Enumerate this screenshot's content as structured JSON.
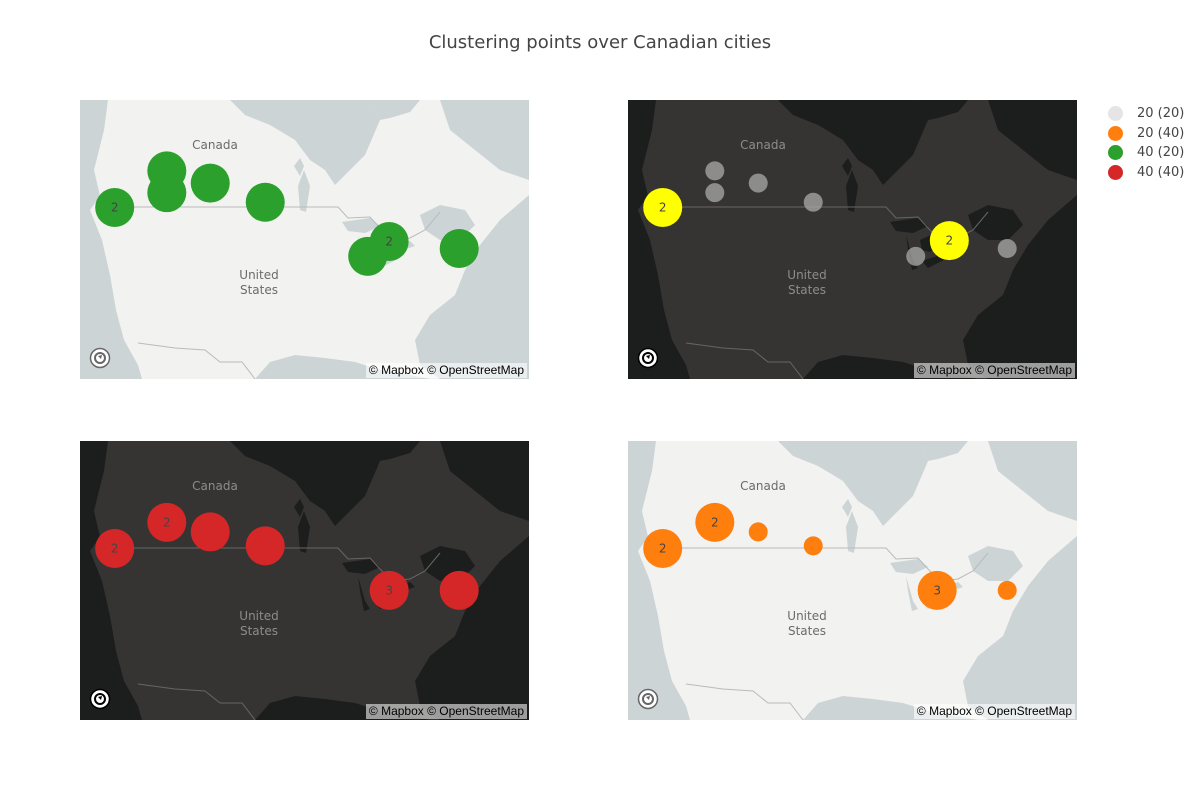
{
  "title": "Clustering points over Canadian cities",
  "attribution": "© Mapbox © OpenStreetMap",
  "map_labels": {
    "country_north": "Canada",
    "country_south_line1": "United",
    "country_south_line2": "States"
  },
  "legend": [
    {
      "label": "20 (20)",
      "color": "#e5e5e5"
    },
    {
      "label": "20 (40)",
      "color": "#ff7f0e"
    },
    {
      "label": "40 (20)",
      "color": "#2ca02c"
    },
    {
      "label": "40 (40)",
      "color": "#d62728"
    }
  ],
  "panels": [
    {
      "style": "light",
      "marker_color": "#2ca02c",
      "cluster_color": "#2ca02c",
      "markers": [
        {
          "lon": -123.1,
          "lat": 49.3,
          "count": "2",
          "cluster": true
        },
        {
          "lon": -114.1,
          "lat": 53.5,
          "count": "",
          "cluster": false
        },
        {
          "lon": -114.1,
          "lat": 51.0,
          "count": "",
          "cluster": false
        },
        {
          "lon": -106.6,
          "lat": 52.1,
          "count": "",
          "cluster": false
        },
        {
          "lon": -97.1,
          "lat": 49.9,
          "count": "",
          "cluster": false
        },
        {
          "lon": -75.7,
          "lat": 45.4,
          "count": "2",
          "cluster": true
        },
        {
          "lon": -79.4,
          "lat": 43.7,
          "count": "",
          "cluster": false
        },
        {
          "lon": -63.6,
          "lat": 44.6,
          "count": "",
          "cluster": false
        }
      ]
    },
    {
      "style": "dark",
      "marker_color": "#aaaaaa",
      "cluster_color": "#ffff00",
      "markers": [
        {
          "lon": -123.1,
          "lat": 49.3,
          "count": "2",
          "cluster": true
        },
        {
          "lon": -114.1,
          "lat": 53.5,
          "count": "",
          "cluster": false
        },
        {
          "lon": -114.1,
          "lat": 51.0,
          "count": "",
          "cluster": false
        },
        {
          "lon": -106.6,
          "lat": 52.1,
          "count": "",
          "cluster": false
        },
        {
          "lon": -97.1,
          "lat": 49.9,
          "count": "",
          "cluster": false
        },
        {
          "lon": -73.6,
          "lat": 45.5,
          "count": "2",
          "cluster": true
        },
        {
          "lon": -79.4,
          "lat": 43.7,
          "count": "",
          "cluster": false
        },
        {
          "lon": -63.6,
          "lat": 44.6,
          "count": "",
          "cluster": false
        }
      ]
    },
    {
      "style": "dark",
      "marker_color": "#d62728",
      "cluster_color": "#d62728",
      "markers": [
        {
          "lon": -123.1,
          "lat": 49.3,
          "count": "2",
          "cluster": true
        },
        {
          "lon": -114.1,
          "lat": 52.3,
          "count": "2",
          "cluster": true
        },
        {
          "lon": -106.6,
          "lat": 51.2,
          "count": "",
          "cluster": false
        },
        {
          "lon": -97.1,
          "lat": 49.6,
          "count": "",
          "cluster": false
        },
        {
          "lon": -75.7,
          "lat": 44.5,
          "count": "3",
          "cluster": true
        },
        {
          "lon": -63.6,
          "lat": 44.5,
          "count": "",
          "cluster": false
        }
      ]
    },
    {
      "style": "light",
      "marker_color": "#ff7f0e",
      "cluster_color": "#ff7f0e",
      "markers": [
        {
          "lon": -123.1,
          "lat": 49.3,
          "count": "2",
          "cluster": true
        },
        {
          "lon": -114.1,
          "lat": 52.3,
          "count": "2",
          "cluster": true
        },
        {
          "lon": -106.6,
          "lat": 51.2,
          "count": "",
          "cluster": false
        },
        {
          "lon": -97.1,
          "lat": 49.6,
          "count": "",
          "cluster": false
        },
        {
          "lon": -75.7,
          "lat": 44.5,
          "count": "3",
          "cluster": true
        },
        {
          "lon": -63.6,
          "lat": 44.5,
          "count": "",
          "cluster": false
        }
      ]
    }
  ]
}
